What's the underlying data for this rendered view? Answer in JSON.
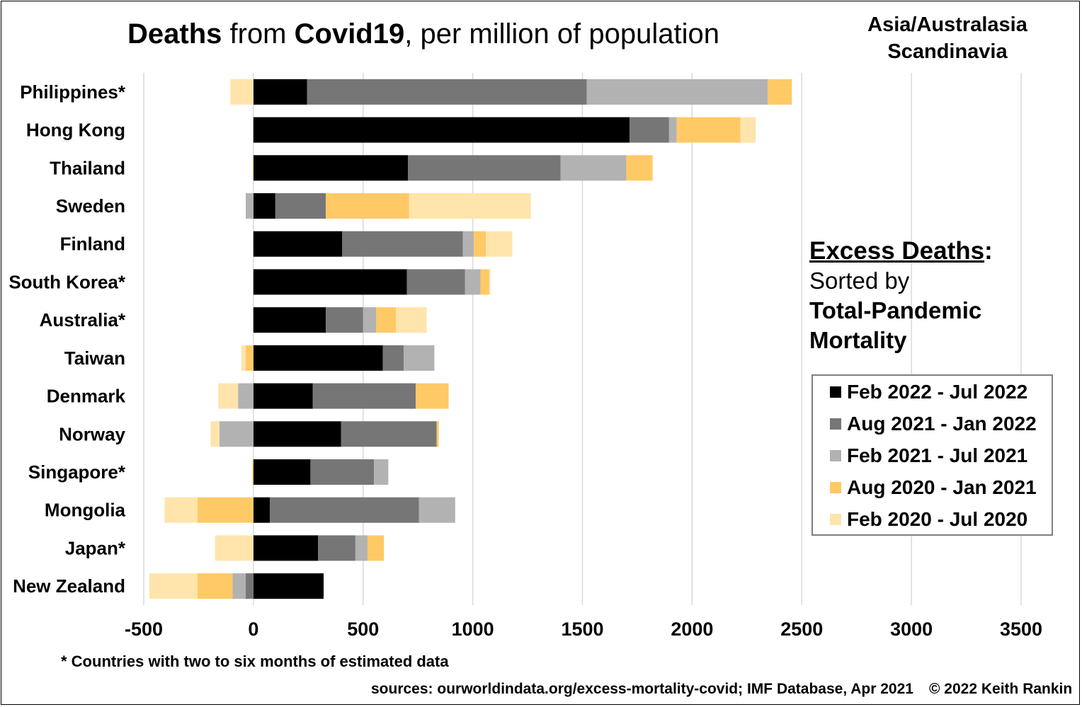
{
  "title_parts": {
    "p1": "Deaths",
    "p2": " from ",
    "p3": "Covid19",
    "p4": ", per million of population"
  },
  "region_line1": "Asia/Australasia",
  "region_line2": "Scandinavia",
  "excess": {
    "heading": "Excess Deaths",
    "colon": ":",
    "sorted_by": "Sorted by",
    "line3": "Total-Pandemic",
    "line4": "Mortality"
  },
  "footnote": "* Countries with two to six months of estimated data",
  "sources": "sources: ourworldindata.org/excess-mortality-covid; IMF Database, Apr 2021",
  "copyright": "© 2022 Keith Rankin",
  "colors": {
    "feb22_jul22": "#000000",
    "aug21_jan22": "#767676",
    "feb21_jul21": "#b2b2b2",
    "aug20_jan21": "#ffc966",
    "feb20_jul20": "#ffe4ab",
    "grid": "#d9d9d9"
  },
  "chart_data": {
    "type": "bar",
    "orientation": "horizontal",
    "stacked": true,
    "categories": [
      "Philippines*",
      "Hong Kong",
      "Thailand",
      "Sweden",
      "Finland",
      "South Korea*",
      "Australia*",
      "Taiwan",
      "Denmark",
      "Norway",
      "Singapore*",
      "Mongolia",
      "Japan*",
      "New Zealand"
    ],
    "series": [
      {
        "name": "Feb 2022 - Jul 2022",
        "color": "#000000",
        "values": [
          245,
          1715,
          705,
          100,
          405,
          700,
          330,
          590,
          270,
          400,
          260,
          75,
          295,
          320
        ]
      },
      {
        "name": "Aug 2021 - Jan 2022",
        "color": "#767676",
        "values": [
          1275,
          180,
          695,
          230,
          550,
          265,
          170,
          95,
          470,
          435,
          290,
          680,
          170,
          -35
        ]
      },
      {
        "name": "Feb 2021 - Jul 2021",
        "color": "#b2b2b2",
        "values": [
          825,
          35,
          300,
          -35,
          50,
          70,
          60,
          140,
          -70,
          -155,
          65,
          165,
          55,
          -60
        ]
      },
      {
        "name": "Aug 2020 - Jan 2021",
        "color": "#ffc966",
        "values": [
          110,
          290,
          120,
          380,
          55,
          40,
          90,
          -35,
          150,
          10,
          -5,
          -255,
          75,
          -160
        ]
      },
      {
        "name": "Feb 2020 - Jul 2020",
        "color": "#ffe4ab",
        "values": [
          -105,
          70,
          -5,
          555,
          120,
          5,
          140,
          -20,
          -90,
          -40,
          0,
          -150,
          -175,
          -220
        ]
      }
    ],
    "xlim": [
      -500,
      3500
    ],
    "xticks": [
      -500,
      0,
      500,
      1000,
      1500,
      2000,
      2500,
      3000,
      3500
    ],
    "grid": true,
    "legend_position": "right"
  }
}
